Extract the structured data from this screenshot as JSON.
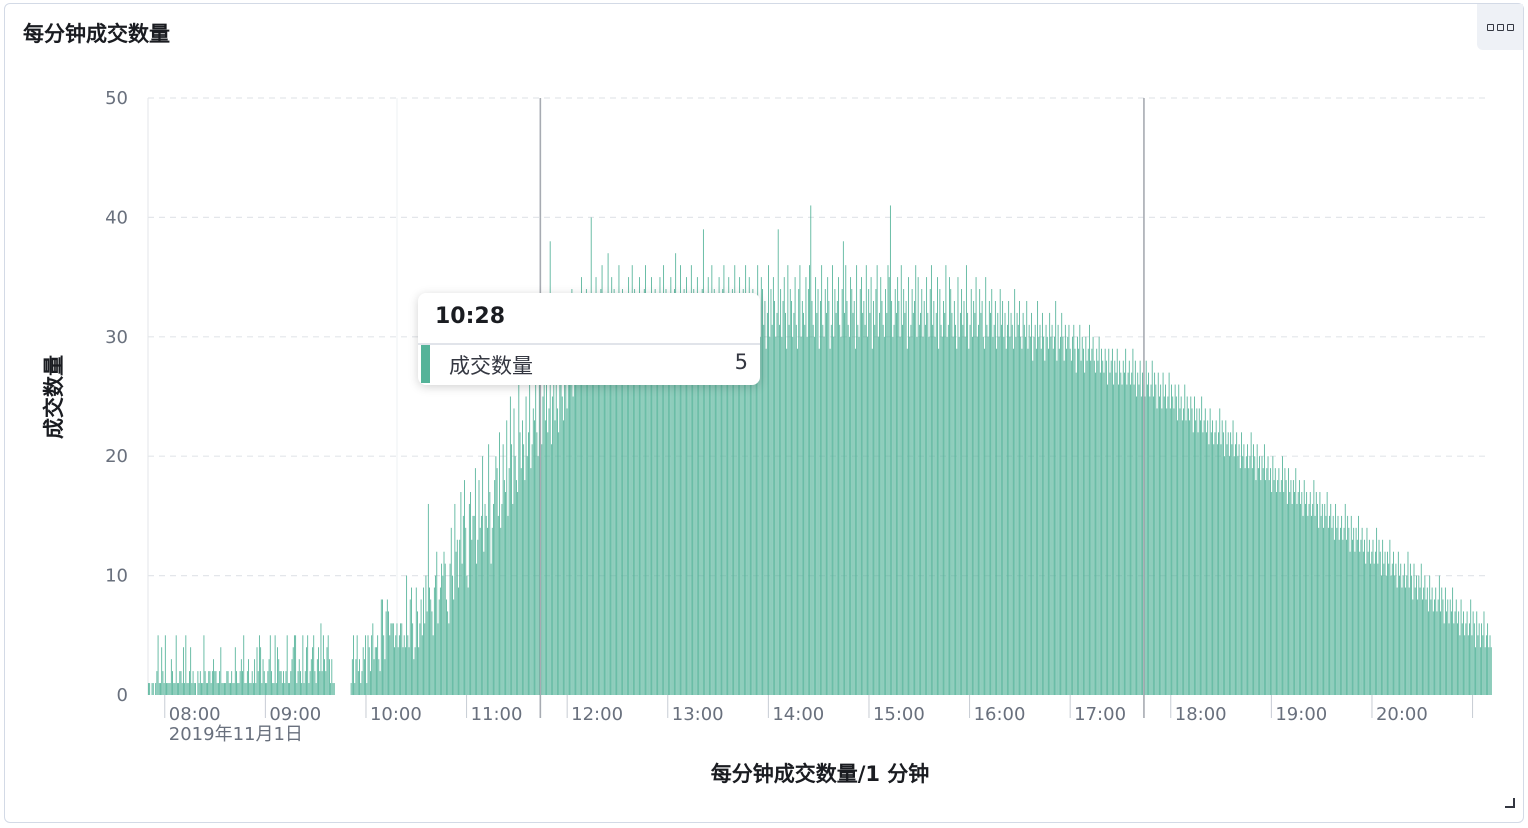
{
  "panel": {
    "title": "每分钟成交数量"
  },
  "colors": {
    "bar": "#54b399",
    "grid": "#e3e6ea",
    "crosshair": "#a7abb2"
  },
  "icons": {
    "panel_menu": "three-squares-icon",
    "resize": "resize-corner-icon"
  },
  "tooltip": {
    "time": "10:28",
    "series": "成交数量",
    "value": "5"
  },
  "chart_data": {
    "type": "bar",
    "title": "",
    "xlabel": "每分钟成交数量/1 分钟",
    "ylabel": "成交数量",
    "ylim": [
      0,
      50
    ],
    "yticks": [
      0,
      10,
      20,
      30,
      40,
      50
    ],
    "grid": true,
    "x_start": "07:50",
    "x_interval": "1 分钟",
    "x_tick_labels": [
      "08:00",
      "09:00",
      "10:00",
      "11:00",
      "12:00",
      "13:00",
      "14:00",
      "15:00",
      "16:00",
      "17:00",
      "18:00",
      "19:00",
      "20:00"
    ],
    "x_date_label": "2019年11月1日",
    "x_cursor_times": [
      "11:44",
      "17:44"
    ],
    "series": [
      {
        "name": "成交数量",
        "values": [
          1,
          1,
          0,
          1,
          1,
          0,
          1,
          2,
          5,
          1,
          1,
          4,
          2,
          1,
          5,
          1,
          1,
          1,
          1,
          3,
          2,
          1,
          1,
          5,
          1,
          1,
          2,
          2,
          1,
          4,
          1,
          5,
          1,
          1,
          2,
          4,
          1,
          2,
          1,
          1,
          0,
          2,
          1,
          2,
          1,
          1,
          5,
          2,
          1,
          1,
          2,
          2,
          1,
          2,
          3,
          2,
          2,
          1,
          1,
          2,
          4,
          1,
          1,
          1,
          1,
          2,
          2,
          1,
          1,
          2,
          1,
          1,
          4,
          2,
          1,
          1,
          2,
          3,
          2,
          5,
          1,
          1,
          2,
          3,
          1,
          1,
          2,
          1,
          3,
          1,
          4,
          2,
          5,
          4,
          1,
          3,
          2,
          1,
          1,
          2,
          3,
          5,
          2,
          1,
          1,
          5,
          1,
          4,
          3,
          2,
          2,
          1,
          2,
          1,
          2,
          5,
          1,
          1,
          2,
          3,
          4,
          5,
          5,
          1,
          2,
          3,
          2,
          1,
          5,
          1,
          2,
          4,
          5,
          1,
          2,
          3,
          4,
          5,
          2,
          1,
          3,
          4,
          2,
          6,
          2,
          5,
          3,
          2,
          4,
          5,
          3,
          1,
          3,
          1,
          1,
          0,
          0,
          0,
          0,
          0,
          0,
          0,
          0,
          0,
          0,
          0,
          0,
          0,
          1,
          3,
          5,
          1,
          3,
          5,
          2,
          3,
          1,
          2,
          4,
          3,
          5,
          1,
          5,
          4,
          2,
          5,
          6,
          3,
          4,
          4,
          5,
          3,
          2,
          8,
          8,
          5,
          3,
          7,
          8,
          7,
          5,
          6,
          6,
          6,
          4,
          5,
          6,
          4,
          5,
          6,
          6,
          4,
          5,
          4,
          10,
          5,
          4,
          8,
          9,
          6,
          3,
          4,
          9,
          7,
          4,
          6,
          8,
          5,
          9,
          6,
          10,
          7,
          16,
          9,
          8,
          7,
          5,
          9,
          10,
          12,
          6,
          8,
          9,
          11,
          10,
          12,
          11,
          8,
          7,
          6,
          11,
          14,
          10,
          8,
          16,
          12,
          13,
          9,
          13,
          17,
          11,
          15,
          18,
          14,
          10,
          9,
          16,
          17,
          13,
          15,
          15,
          19,
          11,
          13,
          18,
          14,
          15,
          20,
          12,
          16,
          15,
          14,
          21,
          17,
          11,
          14,
          16,
          18,
          20,
          19,
          15,
          22,
          14,
          16,
          21,
          18,
          17,
          23,
          15,
          19,
          25,
          21,
          16,
          24,
          20,
          18,
          17,
          26,
          22,
          19,
          23,
          21,
          18,
          25,
          20,
          22,
          27,
          19,
          21,
          24,
          23,
          26,
          22,
          20,
          28,
          24,
          21,
          25,
          29,
          23,
          26,
          22,
          24,
          38,
          21,
          25,
          27,
          23,
          28,
          24,
          22,
          26,
          30,
          25,
          23,
          29,
          27,
          24,
          31,
          26,
          28,
          34,
          25,
          27,
          30,
          29,
          26,
          33,
          28,
          35,
          27,
          30,
          32,
          34,
          29,
          31,
          28,
          40,
          33,
          30,
          27,
          35,
          32,
          31,
          29,
          34,
          36,
          30,
          28,
          33,
          31,
          37,
          29,
          32,
          35,
          30,
          34,
          31,
          33,
          28,
          36,
          32,
          30,
          34,
          29,
          31,
          33,
          27,
          35,
          30,
          32,
          36,
          31,
          34,
          28,
          33,
          30,
          35,
          32,
          29,
          31,
          34,
          36,
          30,
          33,
          29,
          32,
          35,
          31,
          28,
          34,
          30,
          33,
          31,
          35,
          29,
          32,
          36,
          30,
          34,
          31,
          33,
          28,
          35,
          32,
          30,
          34,
          37,
          31,
          29,
          33,
          36,
          32,
          30,
          34,
          31,
          35,
          33,
          29,
          32,
          36,
          30,
          34,
          31,
          33,
          35,
          28,
          32,
          30,
          34,
          39,
          31,
          33,
          29,
          35,
          32,
          30,
          36,
          31,
          34,
          33,
          29,
          32,
          35,
          30,
          31,
          34,
          36,
          32,
          30,
          33,
          35,
          31,
          29,
          34,
          32,
          36,
          30,
          33,
          31,
          35,
          29,
          32,
          34,
          30,
          36,
          33,
          31,
          35,
          32,
          30,
          34,
          29,
          33,
          31,
          36,
          32,
          30,
          35,
          34,
          31,
          33,
          29,
          32,
          36,
          30,
          34,
          31,
          35,
          33,
          30,
          32,
          39,
          31,
          34,
          30,
          33,
          35,
          32,
          29,
          36,
          31,
          34,
          33,
          30,
          32,
          35,
          31,
          29,
          34,
          36,
          30,
          33,
          32,
          31,
          35,
          30,
          34,
          36,
          41,
          33,
          31,
          30,
          35,
          32,
          34,
          29,
          33,
          36,
          31,
          30,
          34,
          32,
          35,
          33,
          29,
          31,
          36,
          30,
          34,
          32,
          33,
          35,
          31,
          30,
          34,
          38,
          32,
          36,
          33,
          31,
          30,
          35,
          34,
          32,
          33,
          29,
          36,
          31,
          30,
          34,
          35,
          32,
          33,
          31,
          36,
          30,
          34,
          32,
          35,
          29,
          33,
          31,
          34,
          36,
          30,
          32,
          35,
          33,
          31,
          30,
          34,
          32,
          36,
          35,
          41,
          33,
          30,
          31,
          34,
          32,
          35,
          33,
          30,
          36,
          31,
          34,
          32,
          33,
          29,
          35,
          30,
          31,
          34,
          32,
          33,
          36,
          30,
          35,
          31,
          32,
          34,
          30,
          33,
          31,
          35,
          32,
          30,
          34,
          36,
          31,
          33,
          30,
          32,
          35,
          29,
          34,
          31,
          30,
          33,
          32,
          36,
          30,
          31,
          35,
          34,
          32,
          30,
          33,
          31,
          29,
          35,
          30,
          32,
          34,
          31,
          33,
          30,
          36,
          32,
          29,
          31,
          34,
          30,
          33,
          32,
          35,
          30,
          31,
          34,
          32,
          33,
          30,
          29,
          35,
          31,
          30,
          33,
          32,
          34,
          30,
          31,
          33,
          29,
          32,
          30,
          34,
          31,
          33,
          30,
          32,
          29,
          31,
          33,
          30,
          32,
          31,
          29,
          34,
          30,
          32,
          31,
          33,
          30,
          29,
          32,
          31,
          30,
          33,
          29,
          31,
          30,
          32,
          28,
          30,
          31,
          29,
          33,
          30,
          31,
          29,
          32,
          30,
          28,
          31,
          30,
          29,
          32,
          30,
          31,
          29,
          30,
          33,
          28,
          31,
          29,
          30,
          32,
          30,
          28,
          31,
          29,
          30,
          31,
          29,
          28,
          30,
          31,
          29,
          27,
          30,
          29,
          31,
          28,
          30,
          29,
          27,
          30,
          28,
          29,
          31,
          28,
          29,
          30,
          28,
          27,
          29,
          28,
          30,
          27,
          29,
          28,
          27,
          29,
          28,
          26,
          29,
          27,
          28,
          29,
          26,
          28,
          27,
          29,
          26,
          28,
          27,
          26,
          28,
          27,
          29,
          26,
          27,
          28,
          26,
          27,
          29,
          26,
          28,
          25,
          27,
          26,
          28,
          25,
          27,
          26,
          25,
          28,
          26,
          27,
          25,
          26,
          28,
          25,
          27,
          26,
          24,
          27,
          25,
          26,
          24,
          27,
          25,
          26,
          24,
          25,
          27,
          24,
          26,
          25,
          24,
          26,
          25,
          23,
          26,
          24,
          25,
          23,
          24,
          26,
          23,
          25,
          24,
          23,
          25,
          24,
          22,
          25,
          23,
          24,
          22,
          24,
          23,
          25,
          22,
          23,
          24,
          22,
          23,
          21,
          24,
          22,
          23,
          21,
          22,
          23,
          21,
          22,
          24,
          21,
          23,
          22,
          20,
          23,
          21,
          22,
          20,
          22,
          21,
          23,
          20,
          21,
          22,
          20,
          21,
          19,
          22,
          20,
          21,
          19,
          20,
          21,
          19,
          20,
          22,
          19,
          21,
          20,
          18,
          21,
          19,
          20,
          18,
          20,
          19,
          21,
          18,
          19,
          20,
          18,
          19,
          17,
          20,
          18,
          19,
          17,
          18,
          19,
          17,
          18,
          20,
          17,
          19,
          18,
          16,
          19,
          17,
          18,
          16,
          18,
          17,
          19,
          16,
          17,
          18,
          16,
          17,
          15,
          18,
          16,
          17,
          15,
          16,
          17,
          15,
          16,
          18,
          15,
          17,
          16,
          14,
          17,
          15,
          16,
          14,
          16,
          15,
          17,
          14,
          15,
          16,
          14,
          15,
          13,
          16,
          14,
          15,
          13,
          14,
          15,
          13,
          14,
          16,
          13,
          15,
          14,
          12,
          15,
          13,
          14,
          12,
          14,
          13,
          15,
          12,
          13,
          14,
          12,
          13,
          11,
          14,
          12,
          13,
          11,
          12,
          13,
          11,
          12,
          14,
          11,
          13,
          12,
          10,
          13,
          11,
          12,
          10,
          12,
          11,
          13,
          10,
          11,
          12,
          10,
          11,
          9,
          12,
          10,
          11,
          9,
          10,
          11,
          9,
          10,
          12,
          9,
          11,
          10,
          8,
          11,
          9,
          10,
          8,
          10,
          9,
          11,
          8,
          9,
          10,
          8,
          9,
          7,
          10,
          8,
          9,
          7,
          8,
          9,
          7,
          8,
          10,
          7,
          9,
          8,
          6,
          9,
          7,
          8,
          6,
          8,
          7,
          9,
          6,
          7,
          8,
          6,
          7,
          5,
          8,
          6,
          7,
          5,
          6,
          7,
          5,
          6,
          8,
          5,
          7,
          6,
          4,
          7,
          5,
          6,
          4,
          6,
          5,
          7,
          4,
          5,
          6,
          4,
          5,
          4
        ]
      }
    ]
  }
}
